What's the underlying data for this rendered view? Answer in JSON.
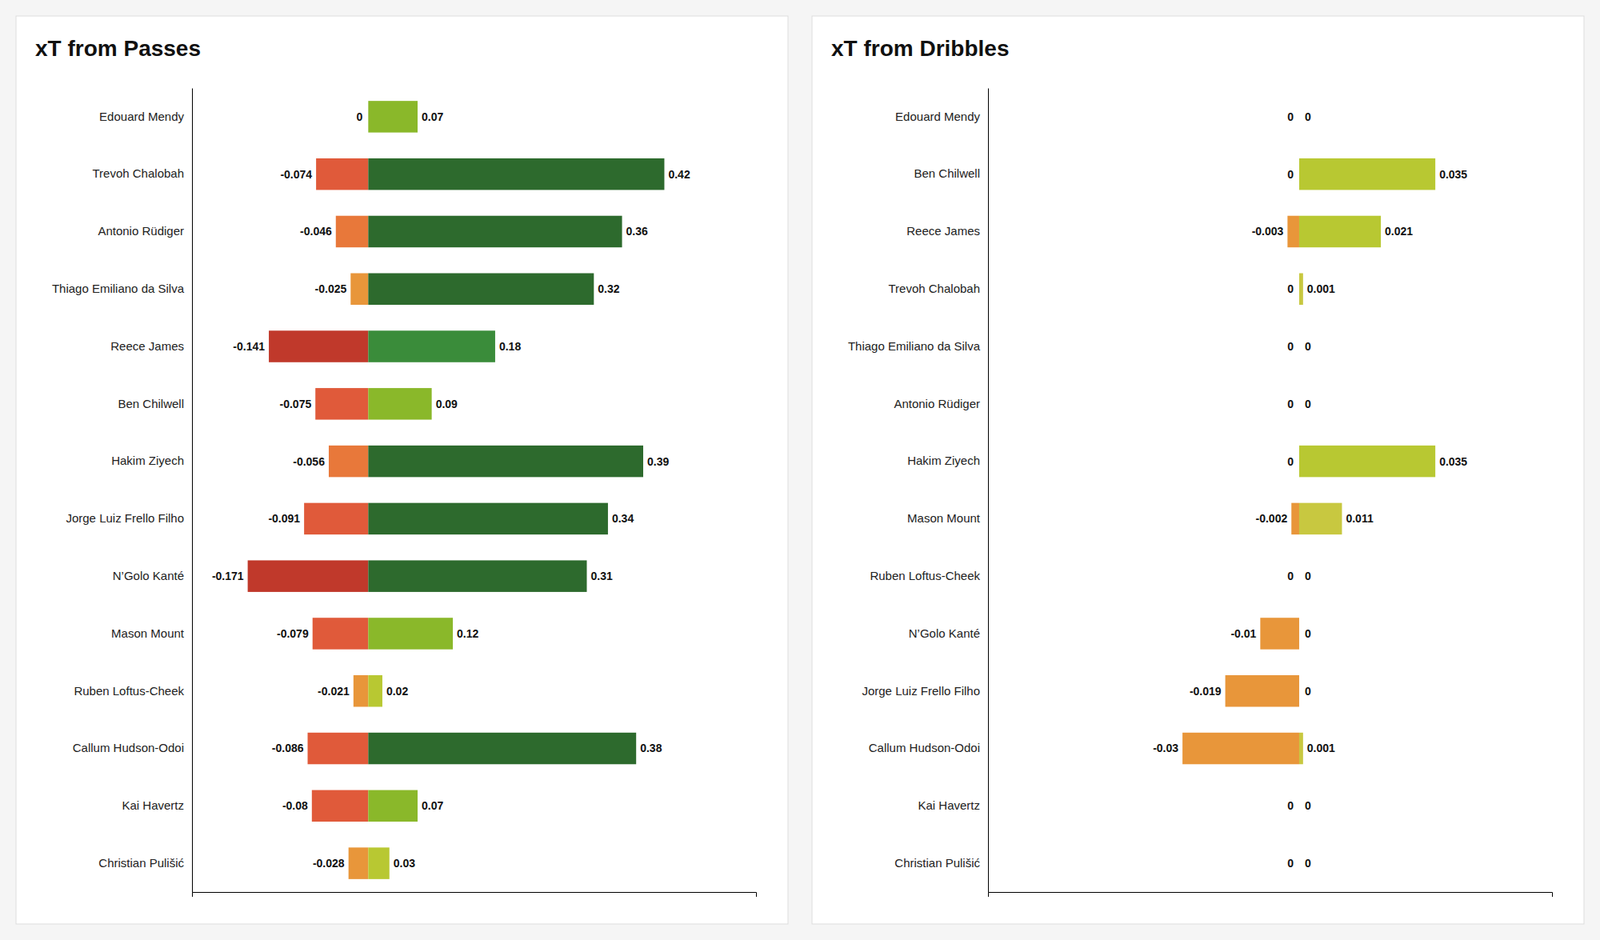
{
  "chart_data": [
    {
      "type": "bar",
      "orientation": "horizontal",
      "title": "xT from Passes",
      "categories": [
        "Edouard Mendy",
        "Trevoh Chalobah",
        "Antonio Rüdiger",
        "Thiago Emiliano da Silva",
        "Reece James",
        "Ben Chilwell",
        "Hakim Ziyech",
        "Jorge Luiz Frello Filho",
        "N’Golo Kanté",
        "Mason Mount",
        "Ruben Loftus-Cheek",
        "Callum Hudson-Odoi",
        "Kai Havertz",
        "Christian Pulišić"
      ],
      "series": [
        {
          "values": [
            0.0,
            -0.074,
            -0.046,
            -0.025,
            -0.141,
            -0.075,
            -0.056,
            -0.091,
            -0.171,
            -0.079,
            -0.021,
            -0.086,
            -0.08,
            -0.028
          ],
          "colors": [
            null,
            "#e05a3a",
            "#e8783a",
            "#e8963a",
            "#c0392b",
            "#e05a3a",
            "#e8783a",
            "#e05a3a",
            "#c0392b",
            "#e05a3a",
            "#e8963a",
            "#e05a3a",
            "#e05a3a",
            "#e8963a"
          ]
        },
        {
          "values": [
            0.07,
            0.42,
            0.36,
            0.32,
            0.18,
            0.09,
            0.39,
            0.34,
            0.31,
            0.12,
            0.02,
            0.38,
            0.07,
            0.03
          ],
          "colors": [
            "#8ab82a",
            "#2d6a2d",
            "#2d6a2d",
            "#2d6a2d",
            "#3a8c3a",
            "#8ab82a",
            "#2d6a2d",
            "#2d6a2d",
            "#2d6a2d",
            "#8ab82a",
            "#b8c832",
            "#2d6a2d",
            "#8ab82a",
            "#b8c832"
          ]
        }
      ],
      "xlim": [
        -0.25,
        0.55
      ],
      "data_labels": true,
      "tick_labels": "y",
      "grid": false
    },
    {
      "type": "bar",
      "orientation": "horizontal",
      "title": "xT from Dribbles",
      "categories": [
        "Edouard Mendy",
        "Ben Chilwell",
        "Reece James",
        "Trevoh Chalobah",
        "Thiago Emiliano da Silva",
        "Antonio Rüdiger",
        "Hakim Ziyech",
        "Mason Mount",
        "Ruben Loftus-Cheek",
        "N’Golo Kanté",
        "Jorge Luiz Frello Filho",
        "Callum Hudson-Odoi",
        "Kai Havertz",
        "Christian Pulišić"
      ],
      "series": [
        {
          "values": [
            0.0,
            0.0,
            -0.003,
            0.0,
            0.0,
            0.0,
            0.0,
            -0.002,
            0.0,
            -0.01,
            -0.019,
            -0.03,
            0.0,
            0.0
          ],
          "colors": [
            null,
            null,
            "#e8963a",
            null,
            null,
            null,
            null,
            "#e8963a",
            null,
            "#e8963a",
            "#e8963a",
            "#e8963a",
            null,
            null
          ]
        },
        {
          "values": [
            0.0,
            0.035,
            0.021,
            0.001,
            0.0,
            0.0,
            0.035,
            0.011,
            0.0,
            0.0,
            0.0,
            0.001,
            0.0,
            0.0
          ],
          "colors": [
            null,
            "#b8c832",
            "#b8c832",
            "#c8c840",
            null,
            null,
            "#b8c832",
            "#c8c840",
            null,
            null,
            null,
            "#c8c840",
            null,
            null
          ]
        }
      ],
      "xlim": [
        -0.08,
        0.065
      ],
      "data_labels": true,
      "tick_labels": "y",
      "grid": false
    }
  ]
}
